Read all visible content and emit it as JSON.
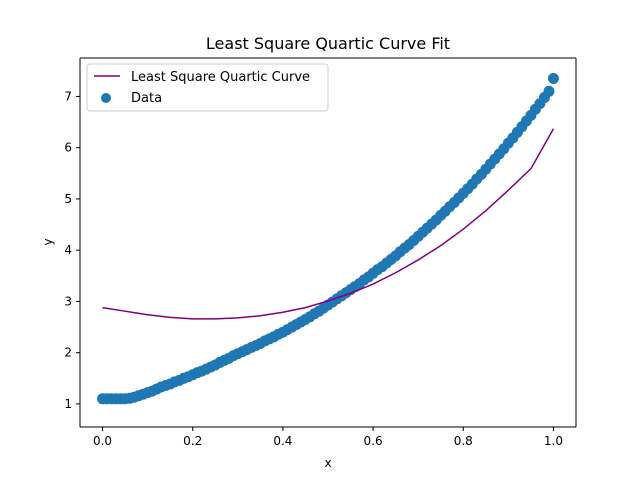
{
  "chart_data": {
    "type": "scatter",
    "title": "Least Square Quartic Curve Fit",
    "xlabel": "x",
    "ylabel": "y",
    "xlim": [
      -0.05,
      1.05
    ],
    "ylim": [
      0.55,
      7.75
    ],
    "xticks": [
      0.0,
      0.2,
      0.4,
      0.6,
      0.8,
      1.0
    ],
    "xtick_labels": [
      "0.0",
      "0.2",
      "0.4",
      "0.6",
      "0.8",
      "1.0"
    ],
    "yticks": [
      1,
      2,
      3,
      4,
      5,
      6,
      7
    ],
    "ytick_labels": [
      "1",
      "2",
      "3",
      "4",
      "5",
      "6",
      "7"
    ],
    "grid": false,
    "legend_position": "top-left",
    "series": [
      {
        "name": "Least Square Quartic Curve",
        "kind": "line",
        "color": "#800080",
        "x": [
          0.0,
          0.05,
          0.1,
          0.15,
          0.2,
          0.25,
          0.3,
          0.35,
          0.4,
          0.45,
          0.5,
          0.55,
          0.6,
          0.65,
          0.7,
          0.75,
          0.8,
          0.85,
          0.9,
          0.95,
          1.0
        ],
        "y": [
          2.88,
          2.81,
          2.74,
          2.69,
          2.66,
          2.66,
          2.68,
          2.72,
          2.79,
          2.88,
          3.01,
          3.16,
          3.34,
          3.56,
          3.81,
          4.09,
          4.41,
          4.77,
          5.17,
          5.59,
          6.37
        ]
      },
      {
        "name": "Data",
        "kind": "scatter",
        "color": "#1f77b4",
        "x": [
          0.0,
          0.01,
          0.02,
          0.03,
          0.04,
          0.05,
          0.06,
          0.07,
          0.08,
          0.09,
          0.1,
          0.11,
          0.12,
          0.13,
          0.14,
          0.15,
          0.16,
          0.17,
          0.18,
          0.19,
          0.2,
          0.21,
          0.22,
          0.23,
          0.24,
          0.25,
          0.26,
          0.27,
          0.28,
          0.29,
          0.3,
          0.31,
          0.32,
          0.33,
          0.34,
          0.35,
          0.36,
          0.37,
          0.38,
          0.39,
          0.4,
          0.41,
          0.42,
          0.43,
          0.44,
          0.45,
          0.46,
          0.47,
          0.48,
          0.49,
          0.5,
          0.51,
          0.52,
          0.53,
          0.54,
          0.55,
          0.56,
          0.57,
          0.58,
          0.59,
          0.6,
          0.61,
          0.62,
          0.63,
          0.64,
          0.65,
          0.66,
          0.67,
          0.68,
          0.69,
          0.7,
          0.71,
          0.72,
          0.73,
          0.74,
          0.75,
          0.76,
          0.77,
          0.78,
          0.79,
          0.8,
          0.81,
          0.82,
          0.83,
          0.84,
          0.85,
          0.86,
          0.87,
          0.88,
          0.89,
          0.9,
          0.91,
          0.92,
          0.93,
          0.94,
          0.95,
          0.96,
          0.97,
          0.98,
          0.99,
          1.0
        ],
        "y": [
          1.1,
          1.1,
          1.1,
          1.1,
          1.1,
          1.1,
          1.11,
          1.13,
          1.16,
          1.19,
          1.22,
          1.25,
          1.29,
          1.33,
          1.36,
          1.39,
          1.43,
          1.46,
          1.5,
          1.53,
          1.57,
          1.61,
          1.64,
          1.68,
          1.72,
          1.76,
          1.81,
          1.85,
          1.89,
          1.94,
          1.98,
          2.02,
          2.06,
          2.1,
          2.14,
          2.18,
          2.23,
          2.27,
          2.31,
          2.36,
          2.4,
          2.45,
          2.5,
          2.55,
          2.6,
          2.65,
          2.7,
          2.76,
          2.81,
          2.87,
          2.93,
          2.99,
          3.05,
          3.11,
          3.17,
          3.23,
          3.29,
          3.35,
          3.42,
          3.48,
          3.55,
          3.62,
          3.68,
          3.75,
          3.82,
          3.89,
          3.97,
          4.04,
          4.11,
          4.19,
          4.27,
          4.35,
          4.43,
          4.51,
          4.59,
          4.68,
          4.76,
          4.85,
          4.93,
          5.02,
          5.11,
          5.2,
          5.29,
          5.39,
          5.48,
          5.58,
          5.68,
          5.78,
          5.88,
          5.98,
          6.09,
          6.19,
          6.3,
          6.41,
          6.52,
          6.63,
          6.75,
          6.86,
          6.98,
          7.1,
          7.35
        ]
      }
    ]
  }
}
